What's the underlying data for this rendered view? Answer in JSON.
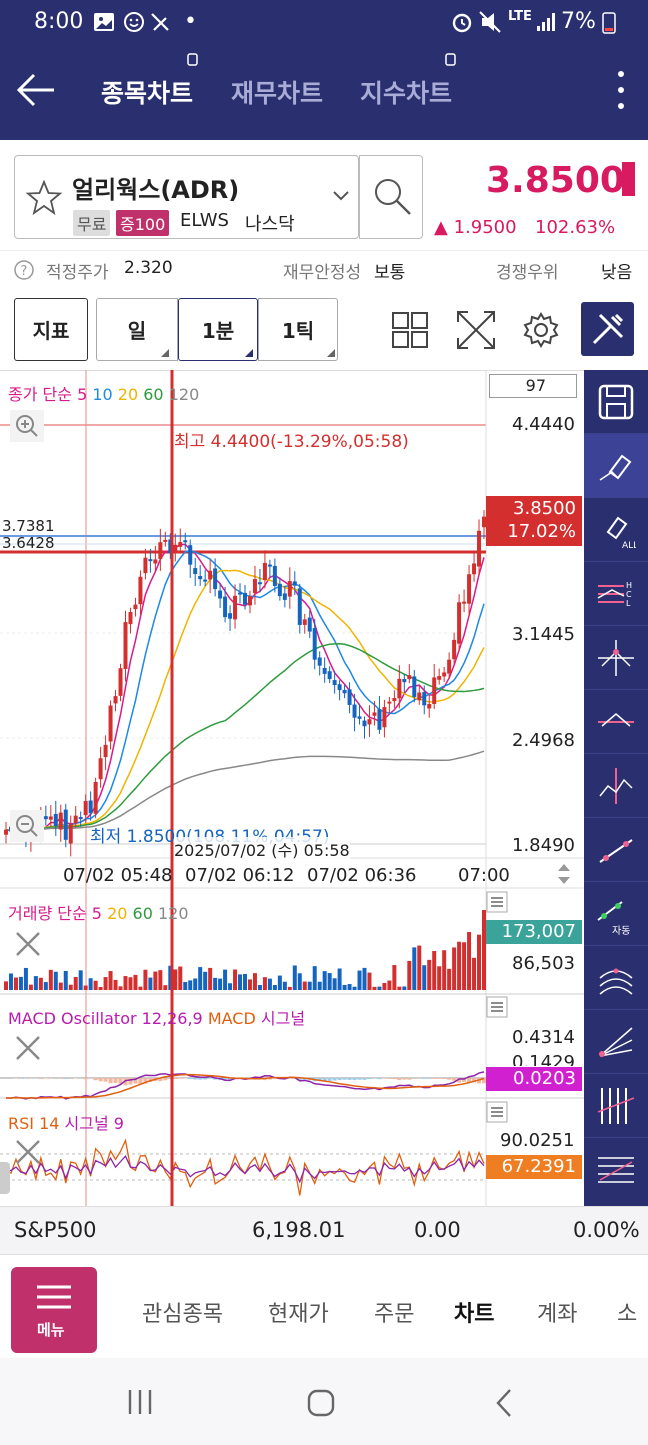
{
  "status": {
    "time": "8:00",
    "dot": "•",
    "lte": "LTE",
    "battery": "7%"
  },
  "header": {
    "tabs": [
      "종목차트",
      "재무차트",
      "지수차트"
    ]
  },
  "stock": {
    "name": "얼리웍스(ADR)",
    "tags": [
      "무료",
      "증100",
      "ELWS",
      "나스닥"
    ],
    "price": "3.8500",
    "change": "▲ 1.9500",
    "change_pct": "102.63%"
  },
  "info": {
    "fair_label": "적정주가",
    "fair_value": "2.320",
    "stability_label": "재무안정성",
    "stability_value": "보통",
    "compete_label": "경쟁우위",
    "compete_value": "낮음"
  },
  "toolbar": {
    "indicator": "지표",
    "periods": [
      "일",
      "1분",
      "1틱"
    ]
  },
  "chart": {
    "legend_label": "종가 단순",
    "ma_list": [
      "5",
      "10",
      "20",
      "60",
      "120"
    ],
    "count": "97",
    "yticks": [
      "4.4440",
      "3.1445",
      "2.4968",
      "1.8490"
    ],
    "high_note": "최고 4.4400(-13.29%,05:58)",
    "low_note": "최저 1.8500(108.11%,04:57)",
    "cursor_time": "2025/07/02 (수) 05:58",
    "left_levels": [
      "3.7381",
      "3.6428"
    ],
    "price_tag": "3.8500",
    "pct_tag": "17.02%",
    "xticks": [
      "07/02 05:48",
      "07/02 06:12",
      "07/02 06:36",
      "07:00"
    ]
  },
  "volume": {
    "label": "거래량 단순",
    "ma_list": [
      "5",
      "20",
      "60",
      "120"
    ],
    "tag": "173,007",
    "tick": "86,503"
  },
  "macd": {
    "label1": "MACD Oscillator 12,26,9",
    "label2": "MACD",
    "label3": "시그널",
    "tick1": "0.4314",
    "tick2": "0.1429",
    "tag": "0.0203"
  },
  "rsi": {
    "label1": "RSI 14",
    "label2": "시그널 9",
    "tick": "90.0251",
    "tag": "67.2391"
  },
  "index": {
    "name": "S&P500",
    "value": "6,198.01",
    "change": "0.00",
    "pct": "0.00%"
  },
  "side": {
    "auto_label": "자동"
  },
  "bottom": {
    "menu": "메뉴",
    "items": [
      "관심종목",
      "현재가",
      "주문",
      "차트",
      "계좌",
      "소"
    ]
  },
  "colors": {
    "navy": "#2a2f6f",
    "up": "#d32f2f",
    "down": "#1565c0",
    "ma5": "#d81b8c",
    "ma10": "#1e88e5",
    "ma20": "#f0b400",
    "ma60": "#2e9b3e",
    "ma120": "#888888",
    "menu": "#c0306b"
  }
}
